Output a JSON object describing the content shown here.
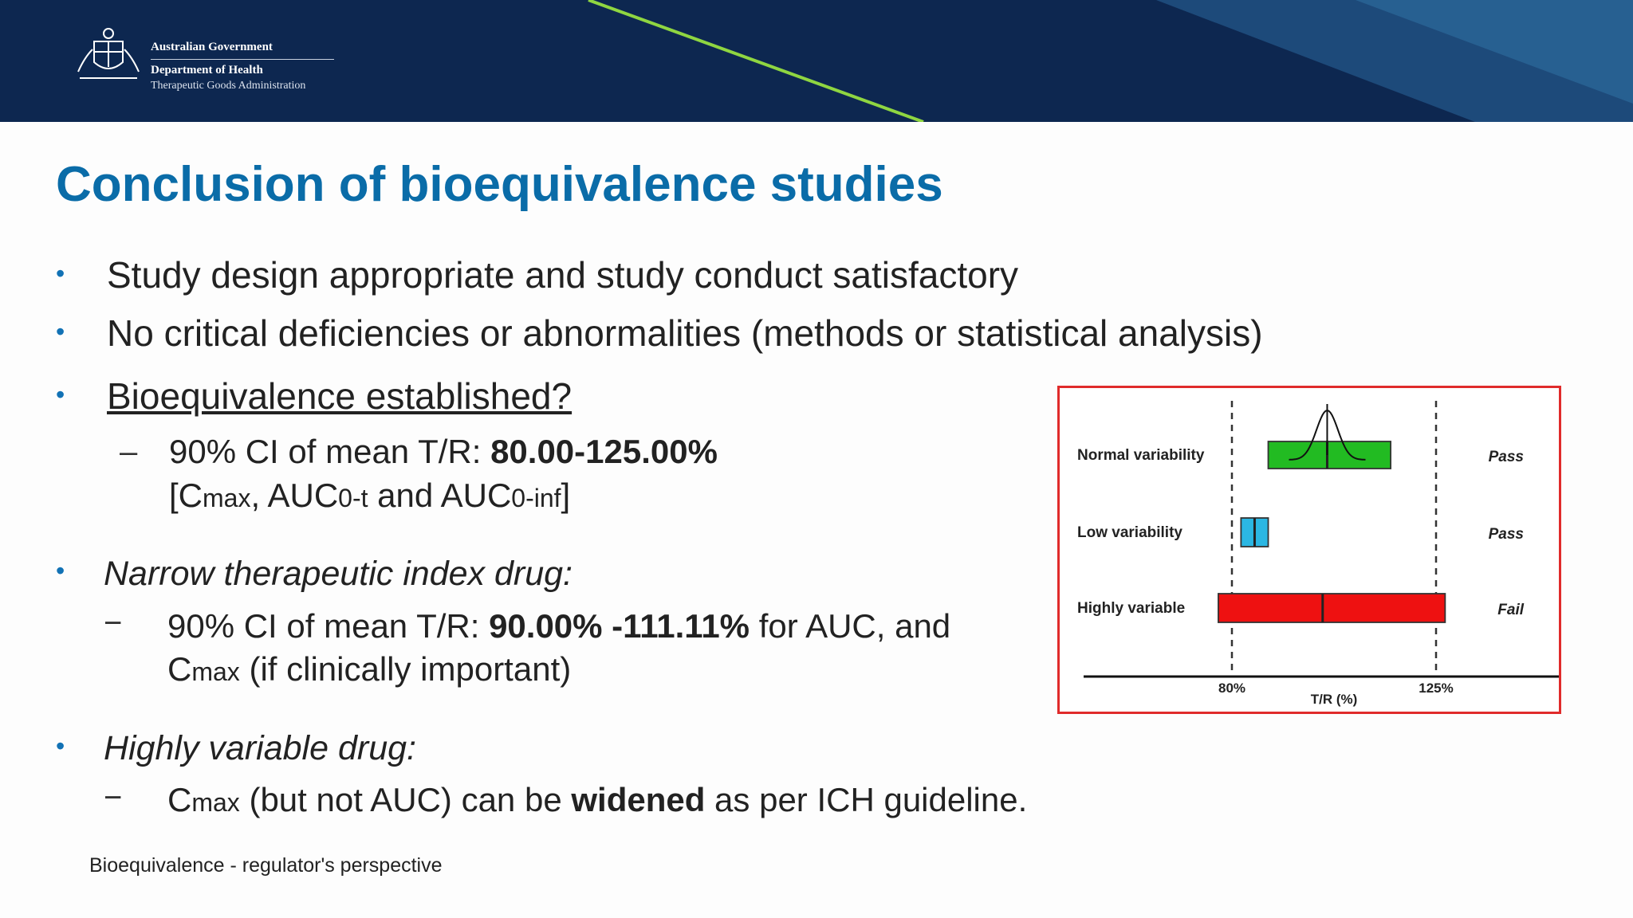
{
  "header": {
    "gov": "Australian Government",
    "dept": "Department of Health",
    "agency": "Therapeutic Goods Administration"
  },
  "title": "Conclusion of bioequivalence studies",
  "bullets": {
    "b1": "Study design appropriate and study conduct satisfactory",
    "b2": "No critical deficiencies or abnormalities (methods or statistical analysis)",
    "b3": "Bioequivalence established?",
    "b3_sub": {
      "prefix": "90% CI of mean T/R: ",
      "range": "80.00-125.00%",
      "l2_open": "[C",
      "l2_max": "max",
      "l2_mid": ", AUC",
      "l2_0t": "0-t",
      "l2_and": " and AUC",
      "l2_0inf": "0-inf",
      "l2_close": "]"
    },
    "b4": "Narrow therapeutic index drug:",
    "b4_sub": {
      "prefix": "90% CI of mean T/R: ",
      "range": "90.00% -111.11%",
      "suffix": " for AUC, and",
      "l2_c": "C",
      "l2_max": "max",
      "l2_rest": " (if clinically important)"
    },
    "b5": "Highly variable drug:",
    "b5_sub": {
      "c": "C",
      "max": "max",
      "mid": " (but not AUC) can be ",
      "bold": "widened",
      "end": " as per ICH guideline."
    }
  },
  "footer": "Bioequivalence - regulator's perspective",
  "chart_data": {
    "type": "interval",
    "xlabel": "T/R (%)",
    "x_ticks": [
      "80%",
      "125%"
    ],
    "reference_lines": [
      80,
      125
    ],
    "series": [
      {
        "label": "Normal variability",
        "low": 88,
        "point": 101,
        "high": 115,
        "result": "Pass",
        "color": "#22bb22"
      },
      {
        "label": "Low variability",
        "low": 82,
        "point": 85,
        "high": 88,
        "result": "Pass",
        "color": "#2bb7e3"
      },
      {
        "label": "Highly variable",
        "low": 77,
        "point": 100,
        "high": 127,
        "result": "Fail",
        "color": "#ee1111"
      }
    ]
  }
}
